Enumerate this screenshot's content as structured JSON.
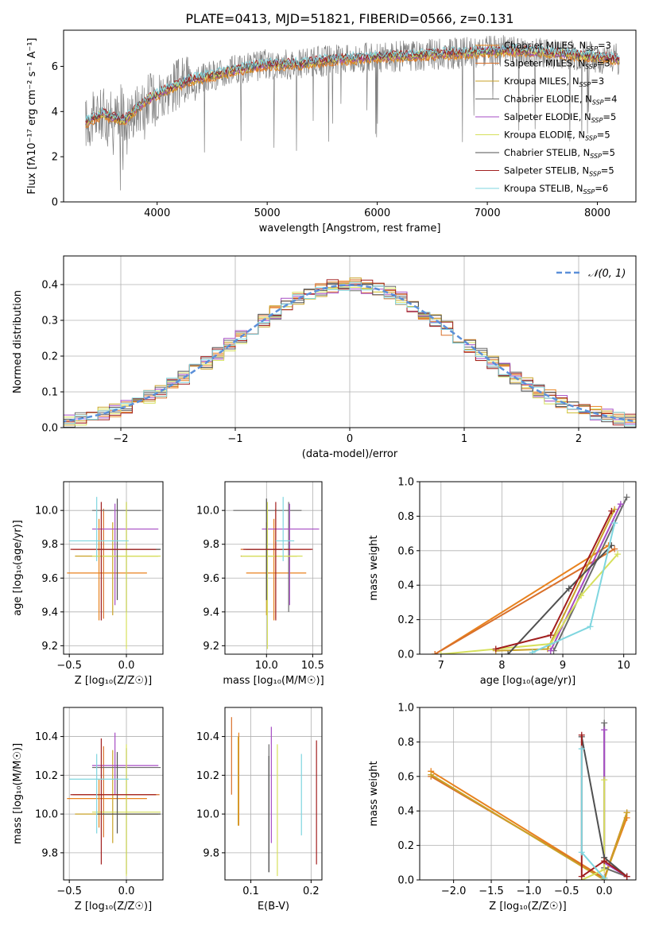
{
  "figure": {
    "title": "PLATE=0413, MJD=51821, FIBERID=0566, z=0.131"
  },
  "colors": {
    "data_spectrum": "#808080",
    "models": [
      "#e8821e",
      "#d9702a",
      "#c9a227",
      "#6b6b6b",
      "#a64cc4",
      "#d6e05c",
      "#505050",
      "#a11f1f",
      "#7fd6df"
    ],
    "normal_curve": "#5b8fd9",
    "grid": "#b0b0b0"
  },
  "chart_data": [
    {
      "id": "spectrum",
      "type": "line",
      "xlabel": "wavelength [Angstrom, rest frame]",
      "ylabel": "Flux [fλ10⁻¹⁷ erg cm⁻² s⁻¹ A⁻¹]",
      "xlim": [
        3150,
        8350
      ],
      "ylim": [
        0,
        7.6
      ],
      "xticks": [
        4000,
        5000,
        6000,
        7000,
        8000
      ],
      "yticks": [
        0,
        2,
        4,
        6
      ],
      "grid": false,
      "legend_position": "top-right",
      "legend": [
        "Chabrier MILES, N_SSP=3",
        "Salpeter MILES, N_SSP=3",
        "Kroupa MILES, N_SSP=3",
        "Chabrier ELODIE, N_SSP=4",
        "Salpeter ELODIE, N_SSP=5",
        "Kroupa ELODIE, N_SSP=5",
        "Chabrier STELIB, N_SSP=5",
        "Salpeter STELIB, N_SSP=5",
        "Kroupa STELIB, N_SSP=6"
      ],
      "continuum": {
        "x": [
          3350,
          3500,
          3700,
          3900,
          4100,
          4300,
          4500,
          4800,
          5000,
          5300,
          5600,
          6000,
          6400,
          6800,
          7200,
          7600,
          8000,
          8200
        ],
        "y": [
          3.5,
          3.9,
          3.6,
          4.5,
          5.0,
          5.4,
          5.6,
          5.9,
          6.1,
          6.1,
          6.3,
          6.4,
          6.5,
          6.6,
          6.7,
          6.6,
          6.4,
          6.3
        ]
      }
    },
    {
      "id": "residual-hist",
      "type": "bar",
      "xlabel": "(data-model)/error",
      "ylabel": "Normed distribution",
      "xlim": [
        -2.5,
        2.5
      ],
      "ylim": [
        0,
        0.48
      ],
      "xticks": [
        -2,
        -1,
        0,
        1,
        2
      ],
      "xtick_labels": [
        "−2",
        "−1",
        "0",
        "1",
        "2"
      ],
      "yticks": [
        0.0,
        0.1,
        0.2,
        0.3,
        0.4
      ],
      "grid": true,
      "legend_position": "top-right",
      "legend": [
        "𝒩(0, 1)"
      ],
      "bin_width": 0.1
    },
    {
      "id": "age-vs-Z",
      "type": "scatter",
      "xlabel": "Z [log₁₀(Z/Z☉)]",
      "ylabel": "age  [log₁₀(age/yr)]",
      "xlim": [
        -0.55,
        0.32
      ],
      "ylim": [
        9.15,
        10.17
      ],
      "xticks": [
        -0.5,
        0.0
      ],
      "xtick_labels": [
        "−0.5",
        "0.0"
      ],
      "yticks": [
        9.2,
        9.4,
        9.6,
        9.8,
        10.0
      ],
      "grid": true,
      "points": [
        {
          "x": -0.24,
          "y": 9.63,
          "xerr": [
            0.28,
            0.42
          ],
          "yerr": [
            0.28,
            0.32
          ]
        },
        {
          "x": -0.2,
          "y": 9.77,
          "xerr": [
            0.27,
            0.49
          ],
          "yerr": [
            0.41,
            0.24
          ]
        },
        {
          "x": -0.12,
          "y": 9.73,
          "xerr": [
            0.33,
            0.4
          ],
          "yerr": [
            0.35,
            0.2
          ]
        },
        {
          "x": 0.0,
          "y": 10.0,
          "xerr": [
            0.3,
            0.3
          ],
          "yerr": [
            0.6,
            0.05
          ]
        },
        {
          "x": -0.1,
          "y": 9.89,
          "xerr": [
            0.2,
            0.38
          ],
          "yerr": [
            0.45,
            0.15
          ]
        },
        {
          "x": 0.0,
          "y": 9.73,
          "xerr": [
            0.3,
            0.3
          ],
          "yerr": [
            0.55,
            0.32
          ]
        },
        {
          "x": -0.08,
          "y": 9.77,
          "xerr": [
            0.18,
            0.38
          ],
          "yerr": [
            0.3,
            0.3
          ]
        },
        {
          "x": -0.22,
          "y": 9.77,
          "xerr": [
            0.27,
            0.48
          ],
          "yerr": [
            0.42,
            0.28
          ]
        },
        {
          "x": -0.26,
          "y": 9.82,
          "xerr": [
            0.24,
            0.28
          ],
          "yerr": [
            0.12,
            0.26
          ]
        }
      ]
    },
    {
      "id": "age-vs-mass",
      "type": "scatter",
      "xlabel": "mass [log₁₀(M/M☉)]",
      "ylabel": "",
      "xlim": [
        9.55,
        10.6
      ],
      "ylim": [
        9.15,
        10.17
      ],
      "xticks": [
        10.0,
        10.5
      ],
      "xtick_labels": [
        "10.0",
        "10.5"
      ],
      "yticks": [
        9.2,
        9.4,
        9.6,
        9.8,
        10.0
      ],
      "grid": true,
      "points": [
        {
          "x": 10.08,
          "y": 9.63,
          "xerr": [
            0.3,
            0.35
          ],
          "yerr": [
            0.28,
            0.32
          ]
        },
        {
          "x": 10.1,
          "y": 9.77,
          "xerr": [
            0.38,
            0.38
          ],
          "yerr": [
            0.41,
            0.24
          ]
        },
        {
          "x": 10.0,
          "y": 9.73,
          "xerr": [
            0.28,
            0.33
          ],
          "yerr": [
            0.35,
            0.2
          ]
        },
        {
          "x": 10.24,
          "y": 10.0,
          "xerr": [
            0.6,
            0.14
          ],
          "yerr": [
            0.6,
            0.05
          ]
        },
        {
          "x": 10.25,
          "y": 9.89,
          "xerr": [
            0.3,
            0.32
          ],
          "yerr": [
            0.45,
            0.15
          ]
        },
        {
          "x": 10.01,
          "y": 9.73,
          "xerr": [
            0.28,
            0.38
          ],
          "yerr": [
            0.55,
            0.32
          ]
        },
        {
          "x": 10.0,
          "y": 9.77,
          "xerr": [
            0.22,
            0.22
          ],
          "yerr": [
            0.3,
            0.3
          ]
        },
        {
          "x": 10.1,
          "y": 9.77,
          "xerr": [
            0.35,
            0.4
          ],
          "yerr": [
            0.42,
            0.28
          ]
        },
        {
          "x": 10.18,
          "y": 9.82,
          "xerr": [
            0.08,
            0.12
          ],
          "yerr": [
            0.12,
            0.26
          ]
        }
      ]
    },
    {
      "id": "massweight-vs-age",
      "type": "line",
      "xlabel": "age  [log₁₀(age/yr)]",
      "ylabel": "mass weight",
      "xlim": [
        6.65,
        10.2
      ],
      "ylim": [
        0,
        1.0
      ],
      "xticks": [
        7,
        8,
        9,
        10
      ],
      "yticks": [
        0.0,
        0.2,
        0.4,
        0.6,
        0.8,
        1.0
      ],
      "grid": true,
      "series": [
        {
          "x": [
            6.9,
            9.75
          ],
          "y": [
            0.0,
            0.63
          ]
        },
        {
          "x": [
            6.9,
            9.85
          ],
          "y": [
            0.0,
            0.61
          ]
        },
        {
          "x": [
            7.9,
            8.75,
            9.85
          ],
          "y": [
            0.02,
            0.03,
            0.84
          ]
        },
        {
          "x": [
            8.85,
            10.05
          ],
          "y": [
            0.02,
            0.91
          ]
        },
        {
          "x": [
            8.8,
            9.95
          ],
          "y": [
            0.02,
            0.87
          ]
        },
        {
          "x": [
            7.0,
            8.8,
            9.3,
            9.9
          ],
          "y": [
            0.0,
            0.06,
            0.34,
            0.58
          ]
        },
        {
          "x": [
            8.1,
            9.1,
            9.8
          ],
          "y": [
            0.0,
            0.38,
            0.63
          ]
        },
        {
          "x": [
            7.9,
            8.8,
            9.8
          ],
          "y": [
            0.03,
            0.11,
            0.83
          ]
        },
        {
          "x": [
            8.5,
            9.45,
            9.85
          ],
          "y": [
            0.01,
            0.16,
            0.76
          ]
        }
      ]
    },
    {
      "id": "mass-vs-Z",
      "type": "scatter",
      "xlabel": "Z [log₁₀(Z/Z☉)]",
      "ylabel": "mass [log₁₀(M/M☉)]",
      "xlim": [
        -0.55,
        0.32
      ],
      "ylim": [
        9.66,
        10.55
      ],
      "xticks": [
        -0.5,
        0.0
      ],
      "xtick_labels": [
        "−0.5",
        "0.0"
      ],
      "yticks": [
        9.8,
        10.0,
        10.2,
        10.4
      ],
      "grid": true,
      "points": [
        {
          "x": -0.24,
          "y": 10.08,
          "xerr": [
            0.28,
            0.42
          ],
          "yerr": [
            0.15,
            0.1
          ]
        },
        {
          "x": -0.2,
          "y": 10.1,
          "xerr": [
            0.27,
            0.49
          ],
          "yerr": [
            0.22,
            0.25
          ]
        },
        {
          "x": -0.12,
          "y": 10.0,
          "xerr": [
            0.33,
            0.4
          ],
          "yerr": [
            0.15,
            0.33
          ]
        },
        {
          "x": 0.0,
          "y": 10.24,
          "xerr": [
            0.3,
            0.3
          ],
          "yerr": [
            0.55,
            0.1
          ]
        },
        {
          "x": -0.1,
          "y": 10.25,
          "xerr": [
            0.2,
            0.38
          ],
          "yerr": [
            0.15,
            0.17
          ]
        },
        {
          "x": 0.0,
          "y": 10.01,
          "xerr": [
            0.3,
            0.3
          ],
          "yerr": [
            0.33,
            0.35
          ]
        },
        {
          "x": -0.08,
          "y": 10.0,
          "xerr": [
            0.18,
            0.38
          ],
          "yerr": [
            0.1,
            0.32
          ]
        },
        {
          "x": -0.22,
          "y": 10.1,
          "xerr": [
            0.27,
            0.48
          ],
          "yerr": [
            0.36,
            0.29
          ]
        },
        {
          "x": -0.26,
          "y": 10.18,
          "xerr": [
            0.24,
            0.28
          ],
          "yerr": [
            0.28,
            0.13
          ]
        }
      ]
    },
    {
      "id": "mass-vs-EBV",
      "type": "scatter",
      "xlabel": "E(B-V)",
      "ylabel": "",
      "xlim": [
        0.057,
        0.218
      ],
      "ylim": [
        9.66,
        10.55
      ],
      "xticks": [
        0.1,
        0.2
      ],
      "xtick_labels": [
        "0.1",
        "0.2"
      ],
      "yticks": [
        9.8,
        10.0,
        10.2,
        10.4
      ],
      "grid": true,
      "points": [
        {
          "x": 0.08,
          "y": 10.18,
          "yerr": [
            0.24,
            0.24
          ]
        },
        {
          "x": 0.068,
          "y": 10.3,
          "yerr": [
            0.2,
            0.2
          ]
        },
        {
          "x": 0.079,
          "y": 10.0,
          "yerr": [
            0.06,
            0.4
          ]
        },
        {
          "x": 0.13,
          "y": 10.03,
          "yerr": [
            0.33,
            0.33
          ]
        },
        {
          "x": 0.134,
          "y": 10.15,
          "yerr": [
            0.3,
            0.3
          ]
        },
        {
          "x": 0.144,
          "y": 10.02,
          "yerr": [
            0.34,
            0.34
          ]
        },
        {
          "x": 0.13,
          "y": 10.0,
          "yerr": [
            0.3,
            0.3
          ]
        },
        {
          "x": 0.209,
          "y": 10.06,
          "yerr": [
            0.32,
            0.32
          ]
        },
        {
          "x": 0.184,
          "y": 10.1,
          "yerr": [
            0.21,
            0.21
          ]
        }
      ]
    },
    {
      "id": "massweight-vs-Z",
      "type": "line",
      "xlabel": "Z [log₁₀(Z/Z☉)]",
      "ylabel": "mass weight",
      "xlim": [
        -2.45,
        0.42
      ],
      "ylim": [
        0,
        1.0
      ],
      "xticks": [
        -2.0,
        -1.5,
        -1.0,
        -0.5,
        0.0
      ],
      "xtick_labels": [
        "−2.0",
        "−1.5",
        "−1.0",
        "−0.5",
        "0.0"
      ],
      "yticks": [
        0.0,
        0.2,
        0.4,
        0.6,
        0.8,
        1.0
      ],
      "grid": true,
      "series": [
        {
          "x": [
            -2.3,
            0.0,
            0.3
          ],
          "y": [
            0.63,
            0.01,
            0.36
          ]
        },
        {
          "x": [
            -2.3,
            0.0,
            0.3
          ],
          "y": [
            0.6,
            0.01,
            0.39
          ]
        },
        {
          "x": [
            -2.3,
            0.0,
            0.3
          ],
          "y": [
            0.61,
            0.0,
            0.39
          ]
        },
        {
          "x": [
            0.0,
            0.0,
            0.3
          ],
          "y": [
            0.91,
            0.07,
            0.02
          ]
        },
        {
          "x": [
            0.0,
            0.0,
            0.3
          ],
          "y": [
            0.87,
            0.1,
            0.02
          ]
        },
        {
          "x": [
            -0.3,
            0.0,
            0.0
          ],
          "y": [
            0.0,
            0.06,
            0.58
          ]
        },
        {
          "x": [
            -0.3,
            0.0,
            0.3
          ],
          "y": [
            0.83,
            0.13,
            0.02
          ]
        },
        {
          "x": [
            -0.3,
            -0.3,
            0.0,
            0.3
          ],
          "y": [
            0.84,
            0.02,
            0.11,
            0.02
          ]
        },
        {
          "x": [
            -0.3,
            -0.3,
            0.0
          ],
          "y": [
            0.76,
            0.16,
            0.01
          ]
        }
      ]
    }
  ]
}
